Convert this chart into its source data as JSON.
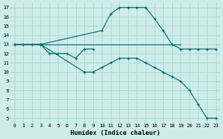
{
  "xlabel": "Humidex (Indice chaleur)",
  "bg_color": "#ceecea",
  "grid_color": "#a8d8d4",
  "line_color": "#006e6e",
  "xlim": [
    -0.5,
    23.5
  ],
  "ylim": [
    4.5,
    17.5
  ],
  "xticks": [
    0,
    1,
    2,
    3,
    4,
    5,
    6,
    7,
    8,
    9,
    10,
    11,
    12,
    13,
    14,
    15,
    16,
    17,
    18,
    19,
    20,
    21,
    22,
    23
  ],
  "yticks": [
    5,
    6,
    7,
    8,
    9,
    10,
    11,
    12,
    13,
    14,
    15,
    16,
    17
  ],
  "series": [
    {
      "x": [
        0,
        1,
        2,
        3,
        10,
        11,
        12,
        13,
        14,
        15,
        16,
        17,
        18,
        19,
        20,
        21,
        22,
        23
      ],
      "y": [
        13,
        13,
        13,
        13,
        14.5,
        16.3,
        17,
        17,
        17,
        17,
        15.8,
        14.5,
        13,
        12.5,
        12.5,
        12.5,
        12.5,
        12.5
      ],
      "marker": true,
      "linewidth": 0.9
    },
    {
      "x": [
        0,
        19
      ],
      "y": [
        13,
        13
      ],
      "marker": false,
      "linewidth": 0.9
    },
    {
      "x": [
        0,
        3,
        8,
        9,
        10,
        11,
        12,
        13,
        14,
        15,
        16,
        17,
        18,
        19,
        20,
        21,
        22,
        23
      ],
      "y": [
        13,
        13,
        10,
        10,
        10.5,
        11,
        11.5,
        11.5,
        11.5,
        11,
        10.5,
        10,
        9.5,
        9,
        8,
        6.5,
        5,
        5
      ],
      "marker": true,
      "linewidth": 0.9
    },
    {
      "x": [
        3,
        4,
        5,
        6,
        7,
        8,
        9
      ],
      "y": [
        13,
        12,
        12,
        12,
        11.5,
        12.5,
        12.5
      ],
      "marker": true,
      "linewidth": 0.9
    }
  ]
}
